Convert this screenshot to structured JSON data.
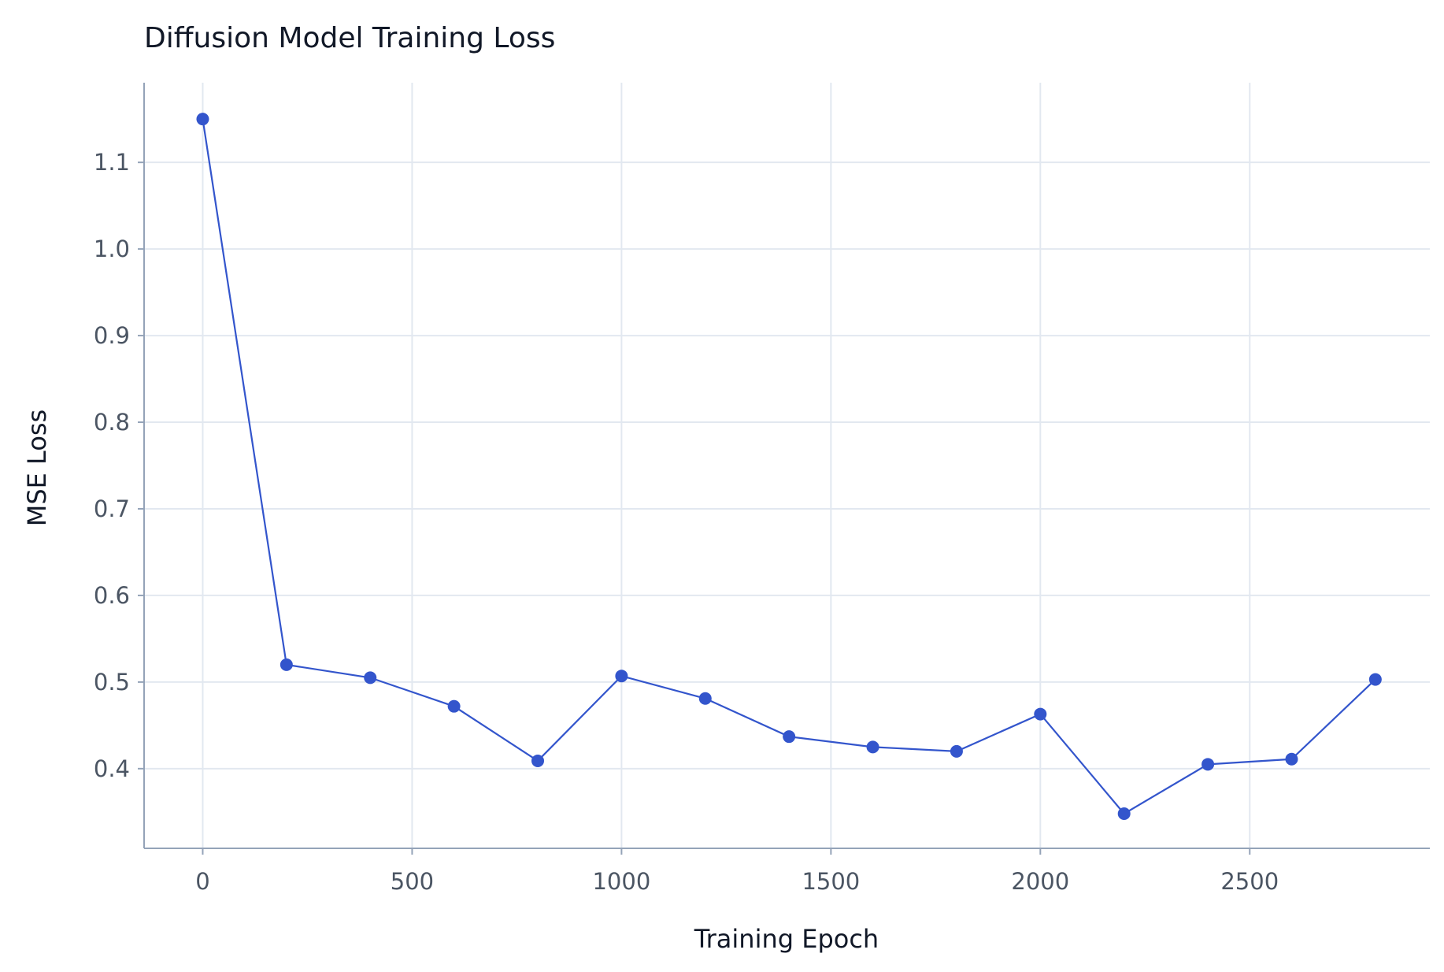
{
  "chart_data": {
    "type": "line",
    "title": "Diffusion Model Training Loss",
    "xlabel": "Training Epoch",
    "ylabel": "MSE Loss",
    "xlim": [
      -140,
      2930
    ],
    "ylim": [
      0.308,
      1.192
    ],
    "grid": true,
    "x_ticks": [
      0,
      500,
      1000,
      1500,
      2000,
      2500
    ],
    "y_ticks": [
      0.4,
      0.5,
      0.6,
      0.7,
      0.8,
      0.9,
      1.0,
      1.1
    ],
    "x_tick_labels": [
      "0",
      "500",
      "1000",
      "1500",
      "2000",
      "2500"
    ],
    "y_tick_labels": [
      "0.4",
      "0.5",
      "0.6",
      "0.7",
      "0.8",
      "0.9",
      "1.0",
      "1.1"
    ],
    "series": [
      {
        "color": "#3355cc",
        "x": [
          0,
          200,
          400,
          600,
          800,
          1000,
          1200,
          1400,
          1600,
          1800,
          2000,
          2200,
          2400,
          2600,
          2800
        ],
        "y": [
          1.15,
          0.52,
          0.505,
          0.472,
          0.409,
          0.507,
          0.481,
          0.437,
          0.425,
          0.42,
          0.463,
          0.348,
          0.405,
          0.411,
          0.503
        ]
      }
    ]
  }
}
